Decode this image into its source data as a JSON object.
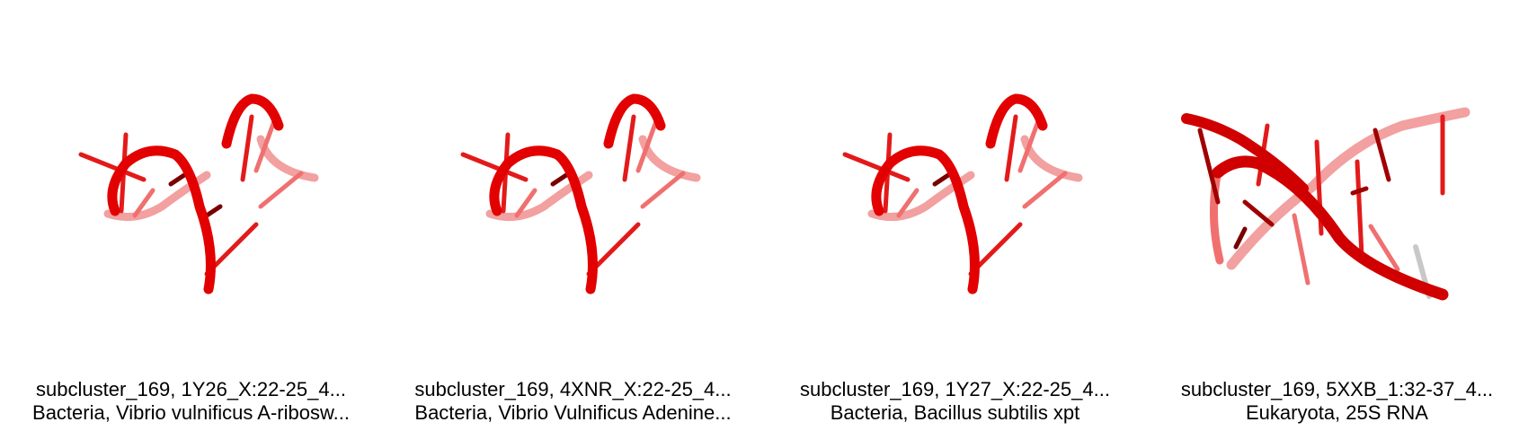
{
  "panels": [
    {
      "line1": "subcluster_169, 1Y26_X:22-25_4...",
      "line2": "Bacteria, Vibrio vulnificus A-ribosw...",
      "structure_icon": "rna-cartoon-icon",
      "color": "#e00000"
    },
    {
      "line1": "subcluster_169, 4XNR_X:22-25_4...",
      "line2": "Bacteria, Vibrio Vulnificus Adenine...",
      "structure_icon": "rna-cartoon-icon",
      "color": "#e00000"
    },
    {
      "line1": "subcluster_169, 1Y27_X:22-25_4...",
      "line2": "Bacteria, Bacillus subtilis xpt",
      "structure_icon": "rna-cartoon-icon",
      "color": "#e00000"
    },
    {
      "line1": "subcluster_169, 5XXB_1:32-37_4...",
      "line2": "Eukaryota, 25S RNA",
      "structure_icon": "rna-double-helix-icon",
      "color": "#e00000"
    }
  ]
}
